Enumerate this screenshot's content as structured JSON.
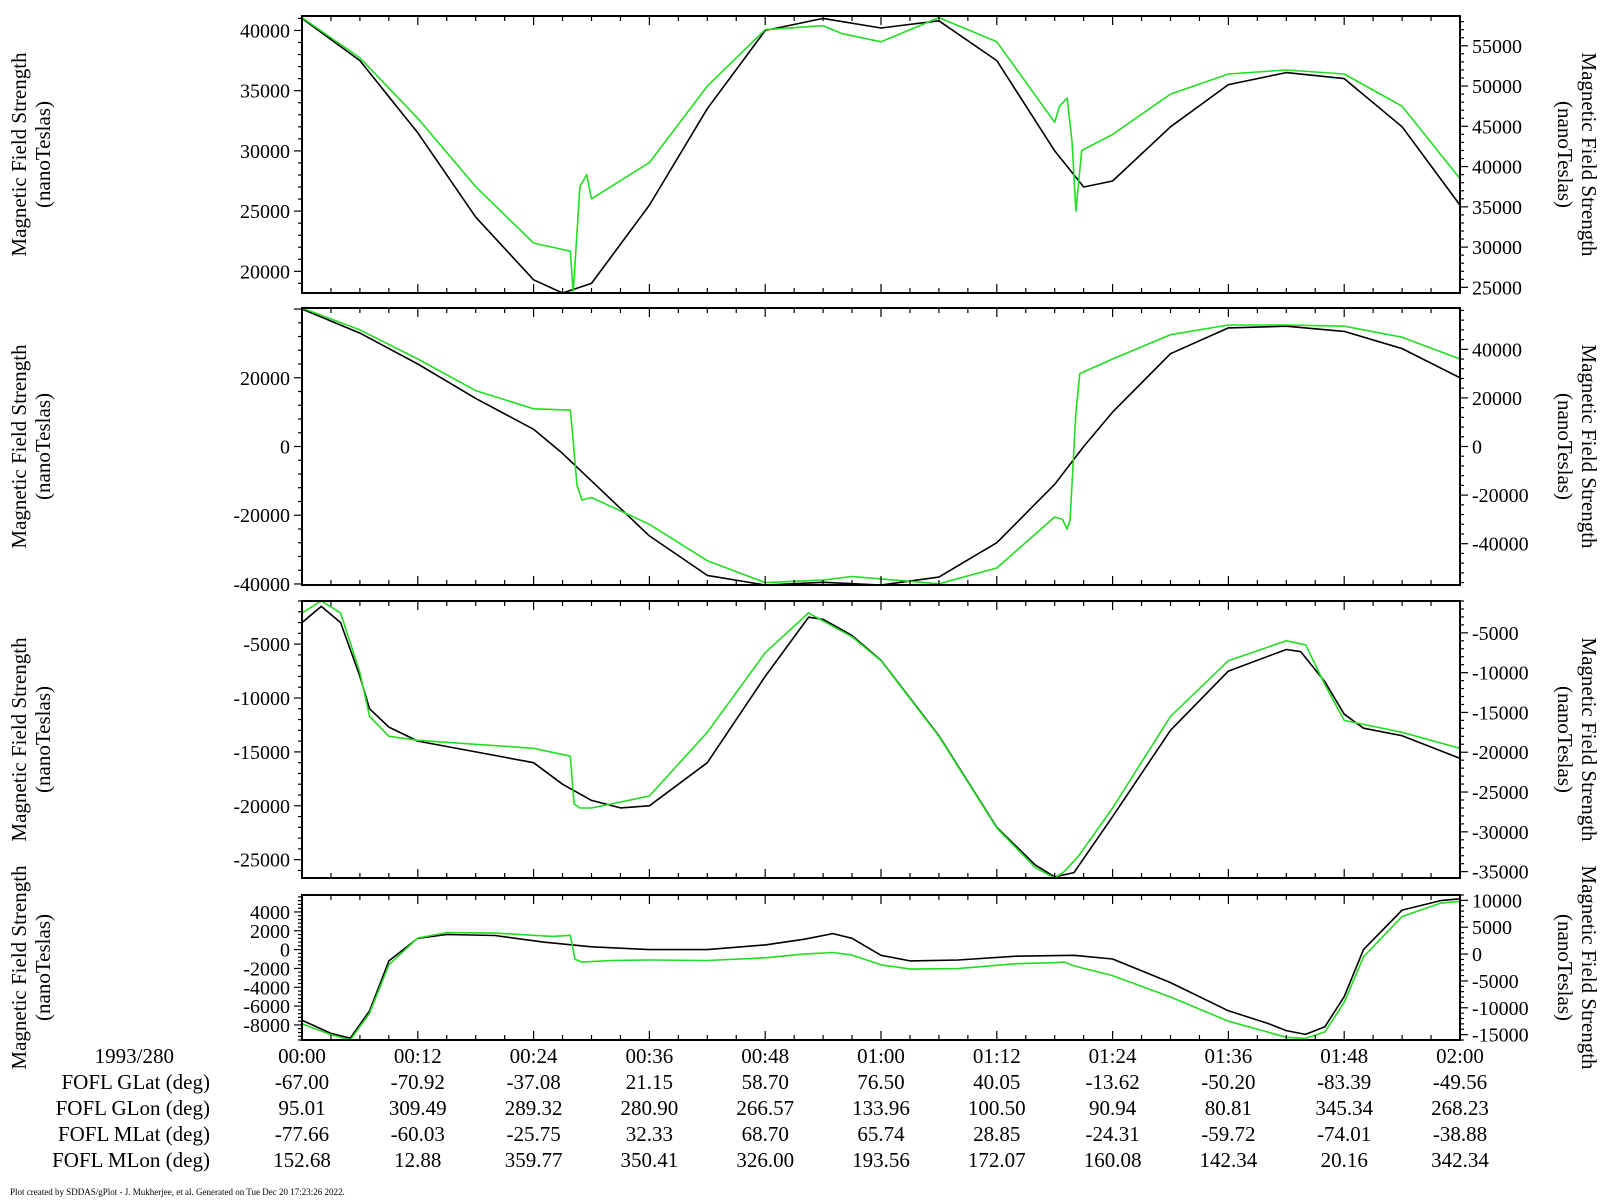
{
  "footer": "Plot created by SDDAS/gPlot - J. Mukherjee, et al.  Generated on Tue Dec 20 17:23:26 2022.",
  "colors": {
    "series_a": "#000000",
    "series_b": "#22dd22",
    "frame": "#000000"
  },
  "ephemeris": {
    "date_label": "1993/280",
    "rows": [
      {
        "label": "FOFL GLat (deg)",
        "values": [
          "-67.00",
          "-70.92",
          "-37.08",
          "21.15",
          "58.70",
          "76.50",
          "40.05",
          "-13.62",
          "-50.20",
          "-83.39",
          "-49.56"
        ]
      },
      {
        "label": "FOFL GLon (deg)",
        "values": [
          "95.01",
          "309.49",
          "289.32",
          "280.90",
          "266.57",
          "133.96",
          "100.50",
          "90.94",
          "80.81",
          "345.34",
          "268.23"
        ]
      },
      {
        "label": "FOFL MLat (deg)",
        "values": [
          "-77.66",
          "-60.03",
          "-25.75",
          "32.33",
          "68.70",
          "65.74",
          "28.85",
          "-24.31",
          "-59.72",
          "-74.01",
          "-38.88"
        ]
      },
      {
        "label": "FOFL MLon (deg)",
        "values": [
          "152.68",
          "12.88",
          "359.77",
          "350.41",
          "326.00",
          "193.56",
          "172.07",
          "160.08",
          "142.34",
          "20.16",
          "342.34"
        ]
      }
    ]
  },
  "chart_data": [
    {
      "type": "line",
      "x_ticks": [
        "00:00",
        "00:12",
        "00:24",
        "00:36",
        "00:48",
        "01:00",
        "01:12",
        "01:24",
        "01:36",
        "01:48",
        "02:00"
      ],
      "xlim": [
        0,
        120
      ],
      "ylabel": "Magnetic Field Strength",
      "ylabel_unit": "(nanoTeslas)",
      "ylim": [
        18200,
        41200
      ],
      "y_ticks": [
        20000,
        25000,
        30000,
        35000,
        40000
      ],
      "y2label": "Magnetic Field Strength",
      "y2label_unit": "(nanoTeslas)",
      "y2lim": [
        24300,
        58700
      ],
      "y2_ticks": [
        25000,
        30000,
        35000,
        40000,
        45000,
        50000,
        55000
      ],
      "series": [
        {
          "axis": "left",
          "x": [
            0,
            6,
            12,
            18,
            24,
            27,
            30,
            36,
            42,
            48,
            54,
            60,
            66,
            72,
            78,
            81,
            84,
            90,
            96,
            102,
            108,
            114,
            120
          ],
          "values": [
            41000,
            37500,
            31500,
            24500,
            19300,
            18200,
            19000,
            25500,
            33500,
            40000,
            41000,
            40200,
            40800,
            37500,
            30000,
            27000,
            27500,
            32000,
            35500,
            36500,
            36000,
            32000,
            25500
          ]
        },
        {
          "axis": "right",
          "x": [
            0,
            6,
            12,
            18,
            24,
            27.8,
            28.1,
            28.8,
            29.5,
            30,
            36,
            42,
            48,
            54,
            56,
            60,
            66,
            72,
            78,
            78.5,
            79.3,
            79.8,
            80.2,
            80.8,
            84,
            90,
            96,
            102,
            108,
            114,
            120
          ],
          "values": [
            58500,
            53500,
            46000,
            37500,
            30500,
            29500,
            24300,
            37500,
            39000,
            36000,
            40500,
            50000,
            57000,
            57500,
            56500,
            55500,
            58500,
            55500,
            45500,
            47500,
            48500,
            43000,
            34500,
            42000,
            44000,
            49000,
            51500,
            52000,
            51500,
            47500,
            38500
          ]
        }
      ]
    },
    {
      "type": "line",
      "x_ticks": [
        "00:00",
        "00:12",
        "00:24",
        "00:36",
        "00:48",
        "01:00",
        "01:12",
        "01:24",
        "01:36",
        "01:48",
        "02:00"
      ],
      "xlim": [
        0,
        120
      ],
      "ylabel": "Magnetic Field Strength",
      "ylabel_unit": "(nanoTeslas)",
      "ylim": [
        -40300,
        40300
      ],
      "y_ticks": [
        -40000,
        -20000,
        0,
        20000
      ],
      "y2label": "Magnetic Field Strength",
      "y2label_unit": "(nanoTeslas)",
      "y2lim": [
        -57000,
        57000
      ],
      "y2_ticks": [
        -40000,
        -20000,
        0,
        20000,
        40000
      ],
      "series": [
        {
          "axis": "left",
          "x": [
            0,
            6,
            12,
            18,
            24,
            27,
            30,
            36,
            42,
            48,
            54,
            60,
            66,
            72,
            78,
            81,
            84,
            90,
            96,
            102,
            108,
            114,
            120
          ],
          "values": [
            40000,
            33000,
            24000,
            14000,
            5000,
            -2000,
            -10000,
            -26000,
            -37500,
            -40300,
            -39500,
            -40300,
            -38000,
            -28000,
            -11000,
            0,
            10000,
            27000,
            34500,
            35000,
            33500,
            28500,
            20000
          ]
        },
        {
          "axis": "right",
          "x": [
            0,
            6,
            12,
            18,
            24,
            27.8,
            28,
            28.5,
            29,
            30,
            36,
            42,
            48,
            54,
            57,
            60,
            66,
            72,
            78,
            78.8,
            79.3,
            79.6,
            80.2,
            80.6,
            84,
            90,
            96,
            102,
            108,
            114,
            120
          ],
          "values": [
            57000,
            48000,
            36000,
            23000,
            15500,
            15000,
            7000,
            -16000,
            -22000,
            -21000,
            -32000,
            -47000,
            -56000,
            -55000,
            -53500,
            -54500,
            -56500,
            -50000,
            -29000,
            -30000,
            -34000,
            -30000,
            14000,
            30000,
            36000,
            46000,
            50000,
            50000,
            49500,
            45000,
            36000
          ]
        }
      ]
    },
    {
      "type": "line",
      "x_ticks": [
        "00:00",
        "00:12",
        "00:24",
        "00:36",
        "00:48",
        "01:00",
        "01:12",
        "01:24",
        "01:36",
        "01:48",
        "02:00"
      ],
      "xlim": [
        0,
        120
      ],
      "ylabel": "Magnetic Field Strength",
      "ylabel_unit": "(nanoTeslas)",
      "ylim": [
        -26700,
        -1000
      ],
      "y_ticks": [
        -25000,
        -20000,
        -15000,
        -10000,
        -5000
      ],
      "y2label": "Magnetic Field Strength",
      "y2label_unit": "(nanoTeslas)",
      "y2lim": [
        -35800,
        -1000
      ],
      "y2_ticks": [
        -35000,
        -30000,
        -25000,
        -20000,
        -15000,
        -10000,
        -5000
      ],
      "series": [
        {
          "axis": "left",
          "x": [
            0,
            2,
            4,
            6,
            7,
            9,
            12,
            18,
            24,
            27,
            30,
            33,
            36,
            42,
            48,
            52.5,
            54,
            57,
            60,
            66,
            72,
            76,
            78,
            80,
            84,
            90,
            96,
            102,
            103.5,
            106,
            108,
            110,
            114,
            120
          ],
          "values": [
            -3000,
            -1500,
            -3000,
            -8000,
            -11000,
            -12700,
            -14000,
            -15000,
            -16000,
            -18000,
            -19500,
            -20200,
            -20000,
            -16000,
            -8000,
            -2500,
            -2700,
            -4200,
            -6500,
            -13500,
            -22000,
            -25500,
            -26600,
            -26200,
            -21000,
            -13000,
            -7500,
            -5500,
            -5700,
            -8500,
            -11500,
            -12800,
            -13500,
            -15600
          ]
        },
        {
          "axis": "right",
          "x": [
            0,
            2,
            4,
            6,
            7,
            9,
            12,
            18,
            24,
            27.8,
            28.2,
            28.8,
            30,
            36,
            42,
            48,
            52.5,
            54,
            57,
            60,
            66,
            72,
            76,
            78,
            79,
            80.5,
            84,
            90,
            96,
            102,
            104,
            106,
            108,
            110,
            114,
            120
          ],
          "values": [
            -2500,
            -1000,
            -2500,
            -10000,
            -15500,
            -18000,
            -18500,
            -19000,
            -19500,
            -20500,
            -26500,
            -27000,
            -27000,
            -25500,
            -17500,
            -7500,
            -2500,
            -3500,
            -5500,
            -8500,
            -18000,
            -29500,
            -34500,
            -35800,
            -35000,
            -33000,
            -27000,
            -15500,
            -8500,
            -6000,
            -6500,
            -11500,
            -16000,
            -16500,
            -17500,
            -19500
          ]
        }
      ]
    },
    {
      "type": "line",
      "x_ticks": [
        "00:00",
        "00:12",
        "00:24",
        "00:36",
        "00:48",
        "01:00",
        "01:12",
        "01:24",
        "01:36",
        "01:48",
        "02:00"
      ],
      "xlim": [
        0,
        120
      ],
      "ylabel": "Magnetic Field Strength",
      "ylabel_unit": "(nanoTeslas)",
      "ylim": [
        -9600,
        5800
      ],
      "y_ticks": [
        -8000,
        -6000,
        -4000,
        -2000,
        0,
        2000,
        4000
      ],
      "y2label": "Magnetic Field Strength",
      "y2label_unit": "(nanoTeslas)",
      "y2lim": [
        -16000,
        11000
      ],
      "y2_ticks": [
        -15000,
        -10000,
        -5000,
        0,
        5000,
        10000
      ],
      "series": [
        {
          "axis": "left",
          "x": [
            0,
            3,
            5,
            7,
            9,
            12,
            15,
            20,
            25,
            30,
            36,
            42,
            48,
            52,
            55,
            57,
            60,
            63,
            68,
            74,
            80,
            84,
            90,
            96,
            100,
            102,
            104,
            106,
            108,
            110,
            114,
            118,
            120
          ],
          "values": [
            -7500,
            -8900,
            -9400,
            -6500,
            -1200,
            1200,
            1600,
            1500,
            800,
            300,
            0,
            0,
            500,
            1100,
            1700,
            1200,
            -600,
            -1200,
            -1100,
            -700,
            -600,
            -1000,
            -3500,
            -6500,
            -7800,
            -8600,
            -9000,
            -8200,
            -5000,
            0,
            4200,
            5200,
            5400
          ]
        },
        {
          "axis": "right",
          "x": [
            0,
            3,
            5,
            7,
            9,
            12,
            15,
            20,
            26,
            27.8,
            28.3,
            29,
            32,
            36,
            42,
            48,
            52,
            55,
            57,
            60,
            63,
            68,
            74,
            78,
            79,
            80,
            84,
            90,
            96,
            100,
            102,
            104,
            106,
            108,
            110,
            114,
            118,
            120
          ],
          "values": [
            -13000,
            -15000,
            -16000,
            -11000,
            -2000,
            3000,
            4000,
            3900,
            3300,
            3500,
            -1000,
            -1500,
            -1200,
            -1100,
            -1200,
            -700,
            0,
            300,
            -200,
            -2000,
            -2800,
            -2700,
            -1800,
            -1600,
            -1500,
            -2200,
            -4000,
            -8000,
            -12500,
            -14500,
            -15500,
            -15700,
            -14500,
            -9000,
            -500,
            7000,
            9500,
            9800
          ]
        }
      ]
    }
  ]
}
